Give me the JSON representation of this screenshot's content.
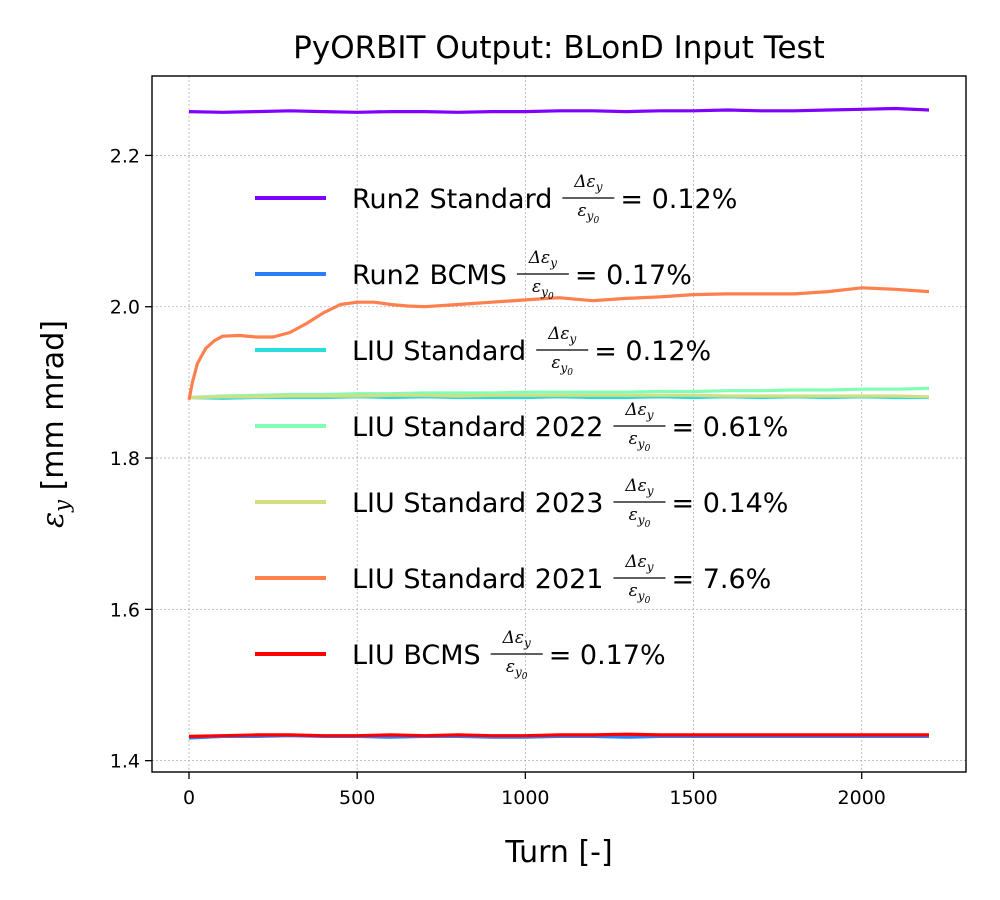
{
  "chart_data": {
    "type": "line",
    "title": "PyORBIT Output: BLonD Input Test",
    "xlabel": "Turn [-]",
    "ylabel_symbol": "ε",
    "ylabel_sub": "y",
    "ylabel_unit": " [mm mrad]",
    "xlim": [
      -110,
      2310
    ],
    "ylim": [
      1.385,
      2.305
    ],
    "xticks": [
      0,
      500,
      1000,
      1500,
      2000
    ],
    "xtick_labels": [
      "0",
      "500",
      "1000",
      "1500",
      "2000"
    ],
    "yticks": [
      1.4,
      1.6,
      1.8,
      2.0,
      2.2
    ],
    "ytick_labels": [
      "1.4",
      "1.6",
      "1.8",
      "2.0",
      "2.2"
    ],
    "grid": true,
    "legend_position": "center-left",
    "legend_fraction": {
      "numerator": "Δε",
      "numerator_sub": "y",
      "denominator": "ε",
      "denominator_sub": "y",
      "denominator_subsub": "0"
    },
    "series": [
      {
        "name": "Run2 Standard",
        "pct": "= 0.12%",
        "color": "#8000ff",
        "x": [
          0,
          100,
          200,
          300,
          400,
          500,
          600,
          700,
          800,
          900,
          1000,
          1100,
          1200,
          1300,
          1400,
          1500,
          1600,
          1700,
          1800,
          1900,
          2000,
          2100,
          2200
        ],
        "y": [
          2.258,
          2.257,
          2.258,
          2.259,
          2.258,
          2.257,
          2.258,
          2.258,
          2.257,
          2.258,
          2.258,
          2.259,
          2.259,
          2.258,
          2.259,
          2.259,
          2.26,
          2.259,
          2.259,
          2.26,
          2.261,
          2.262,
          2.26
        ]
      },
      {
        "name": "Run2 BCMS",
        "pct": "= 0.17%",
        "color": "#2c7ef8",
        "x": [
          0,
          100,
          200,
          300,
          400,
          500,
          600,
          700,
          800,
          900,
          1000,
          1100,
          1200,
          1300,
          1400,
          1500,
          1600,
          1700,
          1800,
          1900,
          2000,
          2100,
          2200
        ],
        "y": [
          1.43,
          1.432,
          1.432,
          1.433,
          1.432,
          1.432,
          1.431,
          1.432,
          1.432,
          1.431,
          1.431,
          1.432,
          1.432,
          1.431,
          1.432,
          1.432,
          1.432,
          1.432,
          1.432,
          1.432,
          1.432,
          1.432,
          1.432
        ]
      },
      {
        "name": "LIU Standard",
        "pct": "= 0.12%",
        "color": "#2adddd",
        "x": [
          0,
          100,
          200,
          300,
          400,
          500,
          600,
          700,
          800,
          900,
          1000,
          1100,
          1200,
          1300,
          1400,
          1500,
          1600,
          1700,
          1800,
          1900,
          2000,
          2100,
          2200
        ],
        "y": [
          1.88,
          1.879,
          1.88,
          1.88,
          1.88,
          1.881,
          1.88,
          1.881,
          1.88,
          1.88,
          1.88,
          1.881,
          1.88,
          1.88,
          1.881,
          1.88,
          1.881,
          1.88,
          1.881,
          1.88,
          1.881,
          1.88,
          1.88
        ]
      },
      {
        "name": "LIU Standard 2022",
        "pct": "= 0.61%",
        "color": "#80ffb4",
        "x": [
          0,
          100,
          200,
          300,
          400,
          500,
          600,
          700,
          800,
          900,
          1000,
          1100,
          1200,
          1300,
          1400,
          1500,
          1600,
          1700,
          1800,
          1900,
          2000,
          2100,
          2200
        ],
        "y": [
          1.88,
          1.882,
          1.883,
          1.884,
          1.884,
          1.885,
          1.885,
          1.886,
          1.886,
          1.886,
          1.887,
          1.887,
          1.887,
          1.887,
          1.888,
          1.888,
          1.889,
          1.889,
          1.89,
          1.89,
          1.891,
          1.891,
          1.892
        ]
      },
      {
        "name": "LIU Standard 2023",
        "pct": "= 0.14%",
        "color": "#d4dd80",
        "x": [
          0,
          100,
          200,
          300,
          400,
          500,
          600,
          700,
          800,
          900,
          1000,
          1100,
          1200,
          1300,
          1400,
          1500,
          1600,
          1700,
          1800,
          1900,
          2000,
          2100,
          2200
        ],
        "y": [
          1.88,
          1.881,
          1.881,
          1.882,
          1.882,
          1.882,
          1.883,
          1.883,
          1.882,
          1.883,
          1.883,
          1.883,
          1.883,
          1.883,
          1.883,
          1.883,
          1.882,
          1.882,
          1.882,
          1.882,
          1.882,
          1.882,
          1.881
        ]
      },
      {
        "name": "LIU Standard 2021",
        "pct": "= 7.6%",
        "color": "#ff7f4d",
        "x": [
          0,
          10,
          25,
          50,
          75,
          100,
          150,
          200,
          250,
          300,
          350,
          400,
          450,
          500,
          550,
          600,
          650,
          700,
          800,
          900,
          1000,
          1100,
          1200,
          1300,
          1400,
          1500,
          1600,
          1700,
          1800,
          1900,
          2000,
          2100,
          2200
        ],
        "y": [
          1.877,
          1.9,
          1.925,
          1.945,
          1.955,
          1.961,
          1.962,
          1.96,
          1.96,
          1.966,
          1.978,
          1.992,
          2.003,
          2.006,
          2.006,
          2.003,
          2.001,
          2.0,
          2.003,
          2.006,
          2.009,
          2.012,
          2.008,
          2.011,
          2.013,
          2.016,
          2.017,
          2.017,
          2.017,
          2.02,
          2.025,
          2.023,
          2.02
        ]
      },
      {
        "name": "LIU BCMS",
        "pct": "= 0.17%",
        "color": "#ff0000",
        "x": [
          0,
          100,
          200,
          300,
          400,
          500,
          600,
          700,
          800,
          900,
          1000,
          1100,
          1200,
          1300,
          1400,
          1500,
          1600,
          1700,
          1800,
          1900,
          2000,
          2100,
          2200
        ],
        "y": [
          1.432,
          1.433,
          1.434,
          1.434,
          1.433,
          1.433,
          1.434,
          1.433,
          1.434,
          1.433,
          1.433,
          1.434,
          1.434,
          1.435,
          1.434,
          1.434,
          1.434,
          1.434,
          1.434,
          1.434,
          1.434,
          1.434,
          1.434
        ]
      }
    ]
  }
}
